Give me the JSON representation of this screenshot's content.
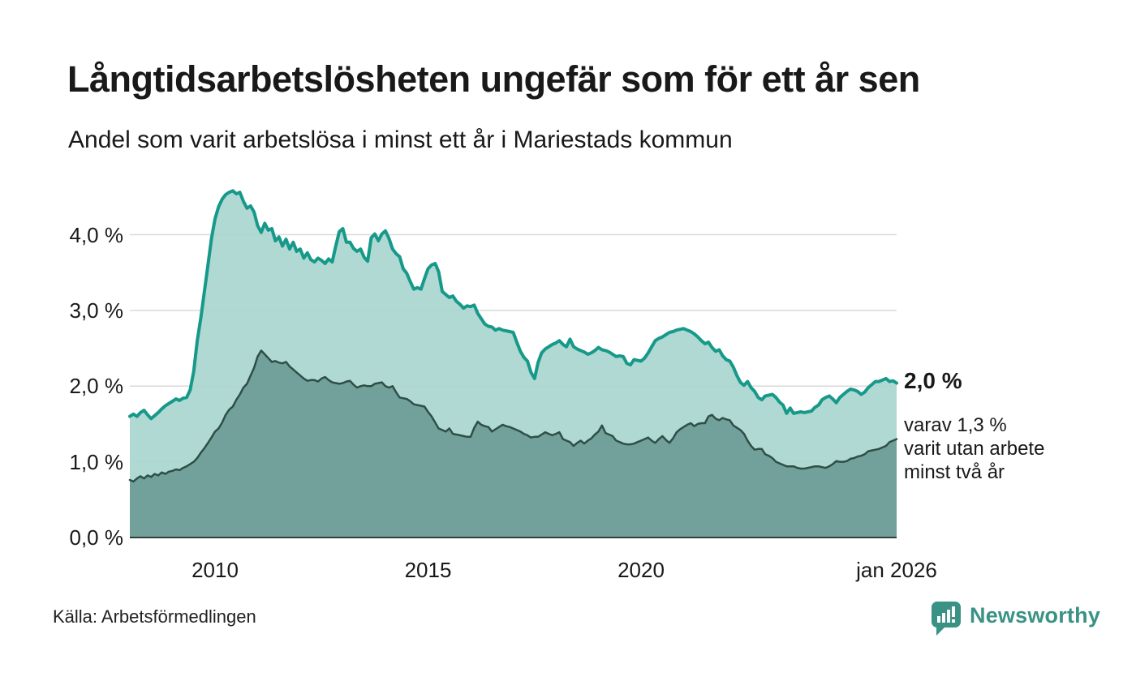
{
  "header": {
    "title": "Långtidsarbetslösheten ungefär som för ett år sen",
    "subtitle": "Andel som varit arbetslösa i minst ett år i Mariestads kommun"
  },
  "chart_data": {
    "type": "area",
    "title": "Långtidsarbetslösheten ungefär som för ett år sen",
    "subtitle": "Andel som varit arbetslösa i minst ett år i Mariestads kommun",
    "x_unit": "month",
    "x_start": "jan 2008",
    "x_end": "jan 2026",
    "grid": true,
    "ylim": [
      0,
      4.8
    ],
    "y_ticks": [
      {
        "value": 0,
        "label": "0,0 %"
      },
      {
        "value": 1,
        "label": "1,0 %"
      },
      {
        "value": 2,
        "label": "2,0 %"
      },
      {
        "value": 3,
        "label": "3,0 %"
      },
      {
        "value": 4,
        "label": "4,0 %"
      }
    ],
    "x_tick_labels": [
      {
        "label": "2010",
        "month_index": 24
      },
      {
        "label": "2015",
        "month_index": 84
      },
      {
        "label": "2020",
        "month_index": 144
      },
      {
        "label": "jan 2026",
        "month_index": 216
      }
    ],
    "colors": {
      "one_year_line": "#17998a",
      "one_year_fill": "#a9d6cf",
      "two_year_line": "#2e4f47",
      "two_year_fill": "#6f9e98",
      "grid_line": "#d9d9d9",
      "baseline": "#333d39",
      "logo_teal": "#3a9285"
    },
    "series": [
      {
        "name": "Andel arbetslösa minst ett år",
        "color": "#17998a",
        "fill": "#a9d6cf",
        "line_width": 4,
        "values": [
          1.6,
          1.63,
          1.6,
          1.65,
          1.68,
          1.62,
          1.57,
          1.61,
          1.65,
          1.7,
          1.74,
          1.77,
          1.8,
          1.83,
          1.81,
          1.84,
          1.85,
          1.95,
          2.2,
          2.6,
          2.9,
          3.25,
          3.6,
          3.95,
          4.21,
          4.37,
          4.47,
          4.53,
          4.56,
          4.58,
          4.54,
          4.56,
          4.44,
          4.35,
          4.38,
          4.3,
          4.12,
          4.03,
          4.15,
          4.06,
          4.08,
          3.92,
          3.97,
          3.85,
          3.94,
          3.81,
          3.9,
          3.78,
          3.81,
          3.69,
          3.76,
          3.67,
          3.64,
          3.69,
          3.66,
          3.62,
          3.68,
          3.64,
          3.85,
          4.04,
          4.08,
          3.9,
          3.9,
          3.82,
          3.78,
          3.81,
          3.7,
          3.65,
          3.96,
          4.01,
          3.92,
          4.01,
          4.05,
          3.95,
          3.81,
          3.75,
          3.71,
          3.55,
          3.49,
          3.38,
          3.28,
          3.3,
          3.28,
          3.42,
          3.55,
          3.6,
          3.62,
          3.51,
          3.25,
          3.21,
          3.17,
          3.19,
          3.12,
          3.08,
          3.03,
          3.06,
          3.05,
          3.07,
          2.96,
          2.89,
          2.82,
          2.79,
          2.78,
          2.74,
          2.76,
          2.74,
          2.73,
          2.72,
          2.71,
          2.58,
          2.46,
          2.38,
          2.33,
          2.18,
          2.1,
          2.31,
          2.44,
          2.49,
          2.52,
          2.55,
          2.57,
          2.6,
          2.55,
          2.52,
          2.62,
          2.52,
          2.49,
          2.47,
          2.45,
          2.42,
          2.44,
          2.47,
          2.51,
          2.48,
          2.47,
          2.45,
          2.42,
          2.39,
          2.4,
          2.39,
          2.3,
          2.28,
          2.35,
          2.34,
          2.33,
          2.37,
          2.44,
          2.52,
          2.6,
          2.63,
          2.65,
          2.68,
          2.71,
          2.72,
          2.74,
          2.75,
          2.76,
          2.74,
          2.72,
          2.69,
          2.65,
          2.6,
          2.56,
          2.58,
          2.51,
          2.46,
          2.48,
          2.4,
          2.35,
          2.33,
          2.25,
          2.14,
          2.05,
          2.01,
          2.06,
          1.98,
          1.93,
          1.85,
          1.82,
          1.87,
          1.88,
          1.89,
          1.85,
          1.79,
          1.75,
          1.64,
          1.71,
          1.64,
          1.65,
          1.66,
          1.65,
          1.66,
          1.67,
          1.72,
          1.75,
          1.82,
          1.85,
          1.87,
          1.83,
          1.78,
          1.85,
          1.89,
          1.93,
          1.96,
          1.95,
          1.93,
          1.89,
          1.92,
          1.98,
          2.02,
          2.06,
          2.06,
          2.08,
          2.1,
          2.06,
          2.07,
          2.04
        ]
      },
      {
        "name": "Andel arbetslösa minst två år",
        "color": "#2e4f47",
        "fill": "#6f9e98",
        "line_width": 2.5,
        "values": [
          0.76,
          0.74,
          0.78,
          0.81,
          0.78,
          0.82,
          0.8,
          0.84,
          0.82,
          0.86,
          0.84,
          0.87,
          0.88,
          0.9,
          0.89,
          0.92,
          0.94,
          0.97,
          1.0,
          1.05,
          1.12,
          1.18,
          1.25,
          1.32,
          1.4,
          1.44,
          1.52,
          1.62,
          1.69,
          1.73,
          1.82,
          1.89,
          1.98,
          2.03,
          2.14,
          2.24,
          2.39,
          2.47,
          2.42,
          2.37,
          2.32,
          2.33,
          2.31,
          2.3,
          2.32,
          2.26,
          2.22,
          2.18,
          2.14,
          2.1,
          2.07,
          2.08,
          2.08,
          2.06,
          2.1,
          2.12,
          2.08,
          2.05,
          2.04,
          2.03,
          2.04,
          2.06,
          2.07,
          2.02,
          1.98,
          2.0,
          2.01,
          2.0,
          2.0,
          2.03,
          2.04,
          2.05,
          2.0,
          1.98,
          2.0,
          1.92,
          1.85,
          1.84,
          1.83,
          1.8,
          1.76,
          1.75,
          1.74,
          1.73,
          1.66,
          1.6,
          1.52,
          1.44,
          1.42,
          1.4,
          1.44,
          1.37,
          1.36,
          1.35,
          1.34,
          1.33,
          1.33,
          1.45,
          1.53,
          1.49,
          1.47,
          1.46,
          1.4,
          1.43,
          1.46,
          1.49,
          1.47,
          1.46,
          1.44,
          1.42,
          1.4,
          1.37,
          1.35,
          1.32,
          1.33,
          1.33,
          1.36,
          1.39,
          1.37,
          1.35,
          1.37,
          1.39,
          1.3,
          1.28,
          1.26,
          1.21,
          1.25,
          1.28,
          1.24,
          1.28,
          1.31,
          1.36,
          1.4,
          1.48,
          1.38,
          1.36,
          1.34,
          1.28,
          1.26,
          1.24,
          1.23,
          1.23,
          1.24,
          1.26,
          1.28,
          1.3,
          1.32,
          1.28,
          1.25,
          1.3,
          1.34,
          1.29,
          1.25,
          1.31,
          1.39,
          1.43,
          1.46,
          1.49,
          1.51,
          1.47,
          1.5,
          1.51,
          1.51,
          1.6,
          1.62,
          1.57,
          1.55,
          1.58,
          1.56,
          1.55,
          1.48,
          1.45,
          1.42,
          1.37,
          1.28,
          1.21,
          1.16,
          1.17,
          1.17,
          1.1,
          1.08,
          1.05,
          1.0,
          0.98,
          0.96,
          0.94,
          0.94,
          0.94,
          0.92,
          0.91,
          0.91,
          0.92,
          0.93,
          0.94,
          0.94,
          0.93,
          0.92,
          0.94,
          0.97,
          1.01,
          1.0,
          1.0,
          1.01,
          1.04,
          1.05,
          1.07,
          1.08,
          1.1,
          1.14,
          1.15,
          1.16,
          1.17,
          1.19,
          1.21,
          1.26,
          1.28,
          1.3
        ]
      }
    ],
    "annotations": {
      "latest_value_label": "2,0 %",
      "secondary_label_lines": [
        "varav 1,3 %",
        "varit utan arbete",
        "minst två år"
      ]
    }
  },
  "footer": {
    "source": "Källa: Arbetsförmedlingen",
    "logo_text": "Newsworthy"
  }
}
